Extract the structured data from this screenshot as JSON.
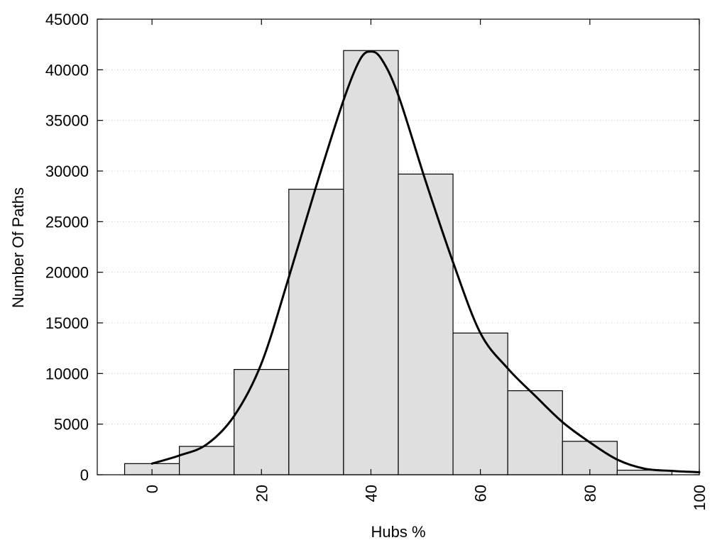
{
  "chart_data": {
    "type": "bar",
    "title": "",
    "xlabel": "Hubs %",
    "ylabel": "Number Of Paths",
    "xlim": [
      -10,
      100
    ],
    "ylim": [
      0,
      45000
    ],
    "xticks": [
      0,
      20,
      40,
      60,
      80,
      100
    ],
    "yticks": [
      0,
      5000,
      10000,
      15000,
      20000,
      25000,
      30000,
      35000,
      40000,
      45000
    ],
    "grid": "horizontal dotted",
    "legend": "none",
    "bar_color": "#dfdfdf",
    "bins": {
      "centers": [
        0,
        10,
        20,
        30,
        40,
        50,
        60,
        70,
        80,
        90
      ],
      "width": 10,
      "values": [
        1100,
        2800,
        10400,
        28200,
        41900,
        29700,
        14000,
        8300,
        3300,
        450
      ]
    },
    "curve": {
      "x": [
        0,
        5,
        10,
        15,
        20,
        25,
        30,
        35,
        38,
        40,
        42,
        45,
        50,
        55,
        60,
        65,
        70,
        75,
        80,
        85,
        90,
        95,
        100
      ],
      "y": [
        1100,
        1900,
        3000,
        5800,
        11000,
        19500,
        28500,
        37000,
        41000,
        41800,
        41000,
        37500,
        29000,
        21000,
        14000,
        10500,
        7800,
        5200,
        3200,
        1500,
        600,
        380,
        250
      ]
    }
  }
}
